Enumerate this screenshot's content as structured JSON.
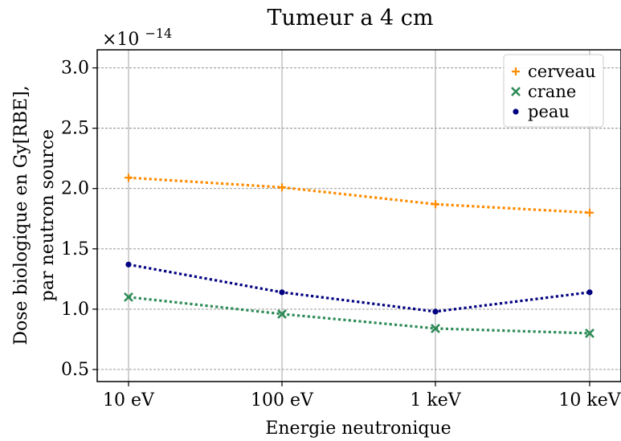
{
  "chart_data": {
    "type": "line",
    "title": "Tumeur a 4 cm",
    "xlabel": "Energie neutronique",
    "ylabel_line1": "Dose biologique en Gy[RBE],",
    "ylabel_line2": "par neutron source",
    "y_multiplier_base": "×10",
    "y_multiplier_exp": "−14",
    "categories": [
      "10 eV",
      "100 eV",
      "1 keV",
      "10 keV"
    ],
    "yticks": [
      "0.5",
      "1.0",
      "1.5",
      "2.0",
      "2.5",
      "3.0"
    ],
    "ytick_values": [
      0.5,
      1.0,
      1.5,
      2.0,
      2.5,
      3.0
    ],
    "ylim": [
      0.4,
      3.15
    ],
    "grid": true,
    "legend_position": "top-right",
    "series": [
      {
        "name": "cerveau",
        "marker": "plus",
        "color": "#ff8c00",
        "values": [
          2.09,
          2.01,
          1.87,
          1.8
        ]
      },
      {
        "name": "crane",
        "marker": "x",
        "color": "#2e8b57",
        "values": [
          1.1,
          0.96,
          0.84,
          0.8
        ]
      },
      {
        "name": "peau",
        "marker": "dot",
        "color": "#000080",
        "values": [
          1.37,
          1.14,
          0.98,
          1.14
        ]
      }
    ]
  }
}
